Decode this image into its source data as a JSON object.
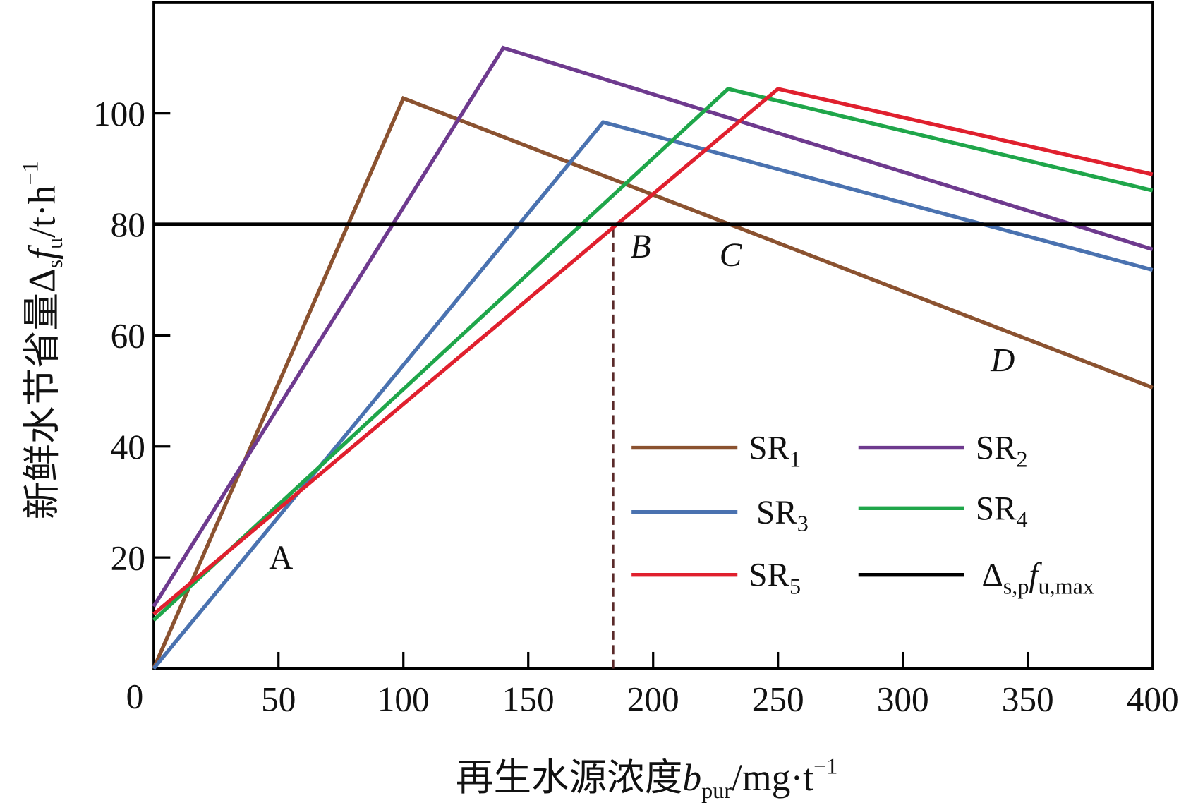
{
  "chart_data": {
    "type": "line",
    "xlabel": {
      "main": "再生水源浓度",
      "var": "b",
      "sub": "pur",
      "unit": "/mg·t",
      "sup": "−1"
    },
    "ylabel": {
      "main": "新鲜水节省量Δ",
      "sub1": "s",
      "var": "f",
      "sub2": "u",
      "unit": "/t·h",
      "sup": "−1"
    },
    "xlim": [
      0,
      400
    ],
    "ylim": [
      0,
      120
    ],
    "xticks": [
      0,
      50,
      100,
      150,
      200,
      250,
      300,
      350,
      400
    ],
    "yticks": [
      20,
      40,
      60,
      80,
      100
    ],
    "x_origin_label": "0",
    "grid": false,
    "legend_placement": "lower-right",
    "series": [
      {
        "name": "SR",
        "sub": "1",
        "color": "#8B5230",
        "points": [
          [
            0,
            0
          ],
          [
            100,
            102.7
          ],
          [
            400,
            50.6
          ]
        ]
      },
      {
        "name": "SR",
        "sub": "2",
        "color": "#6E3A8E",
        "points": [
          [
            0,
            11.2
          ],
          [
            140,
            111.8
          ],
          [
            400,
            75.5
          ]
        ]
      },
      {
        "name": "SR",
        "sub": "3",
        "color": "#4A72B0",
        "points": [
          [
            0,
            0
          ],
          [
            180,
            98.4
          ],
          [
            400,
            71.8
          ]
        ]
      },
      {
        "name": "SR",
        "sub": "4",
        "color": "#1FA64A",
        "points": [
          [
            0,
            8.7
          ],
          [
            230,
            104.4
          ],
          [
            400,
            86.1
          ]
        ]
      },
      {
        "name": "SR",
        "sub": "5",
        "color": "#E0202E",
        "points": [
          [
            0,
            9.8
          ],
          [
            250,
            104.4
          ],
          [
            400,
            89.0
          ]
        ]
      },
      {
        "name": "Δ",
        "sub": "s,p",
        "var": "f",
        "sub2": "u,max",
        "color": "#000000",
        "points": [
          [
            0,
            80
          ],
          [
            400,
            80
          ]
        ]
      }
    ],
    "reference_line": {
      "x": 184,
      "y_range": [
        0,
        80
      ],
      "style": "dashed",
      "color": "#5A2A2A"
    },
    "annotations": [
      {
        "text": "A",
        "x": 51,
        "y": 18,
        "italic": false
      },
      {
        "text": "B",
        "x": 195,
        "y": 74,
        "italic": true
      },
      {
        "text": "C",
        "x": 231,
        "y": 72.5,
        "italic": true
      },
      {
        "text": "D",
        "x": 340,
        "y": 53.5,
        "italic": true
      }
    ]
  }
}
